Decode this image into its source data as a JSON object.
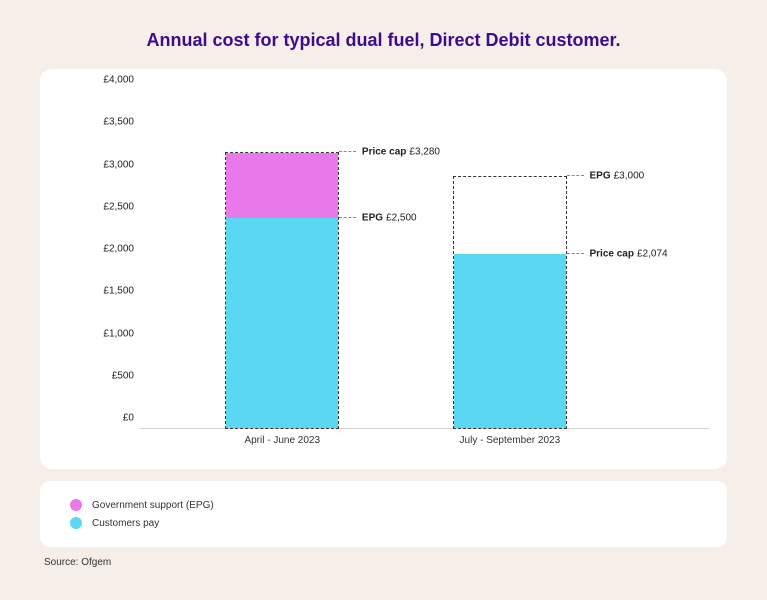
{
  "title": "Annual cost for typical dual fuel, Direct Debit customer.",
  "chart": {
    "type": "stacked-bar",
    "background_color": "#ffffff",
    "page_background": "#f6efe9",
    "title_color": "#3d0b8c",
    "title_fontsize": 18,
    "title_fontweight": 800,
    "yaxis": {
      "min": 0,
      "max": 4000,
      "tick_step": 500,
      "ticks": [
        "£0",
        "£500",
        "£1,000",
        "£1,500",
        "£2,000",
        "£2,500",
        "£3,000",
        "£3,500",
        "£4,000"
      ],
      "label_fontsize": 10,
      "label_color": "#222222"
    },
    "bar_border": {
      "style": "dashed",
      "width": 1.5,
      "color": "#333333"
    },
    "bar_width_pct": 20,
    "bars": [
      {
        "x_center_pct": 25,
        "category": "April - June 2023",
        "outline_height": 3280,
        "segments": [
          {
            "from": 0,
            "to": 2500,
            "color": "#5ad7f2",
            "series": "customers_pay"
          },
          {
            "from": 2500,
            "to": 3280,
            "color": "#e77ae8",
            "series": "gov_support"
          }
        ],
        "callouts": [
          {
            "label": "Price cap",
            "value": "£3,280",
            "at": 3280,
            "side": "right"
          },
          {
            "label": "EPG",
            "value": "£2,500",
            "at": 2500,
            "side": "right"
          }
        ]
      },
      {
        "x_center_pct": 65,
        "category": "July - September 2023",
        "outline_height": 3000,
        "segments": [
          {
            "from": 0,
            "to": 2074,
            "color": "#5ad7f2",
            "series": "customers_pay"
          }
        ],
        "callouts": [
          {
            "label": "EPG",
            "value": "£3,000",
            "at": 3000,
            "side": "right"
          },
          {
            "label": "Price cap",
            "value": "£2,074",
            "at": 2074,
            "side": "right"
          }
        ]
      }
    ]
  },
  "legend": {
    "items": [
      {
        "label": "Government support (EPG)",
        "color": "#e77ae8"
      },
      {
        "label": "Customers pay",
        "color": "#5ad7f2"
      }
    ],
    "fontsize": 10
  },
  "source": "Source: Ofgem"
}
